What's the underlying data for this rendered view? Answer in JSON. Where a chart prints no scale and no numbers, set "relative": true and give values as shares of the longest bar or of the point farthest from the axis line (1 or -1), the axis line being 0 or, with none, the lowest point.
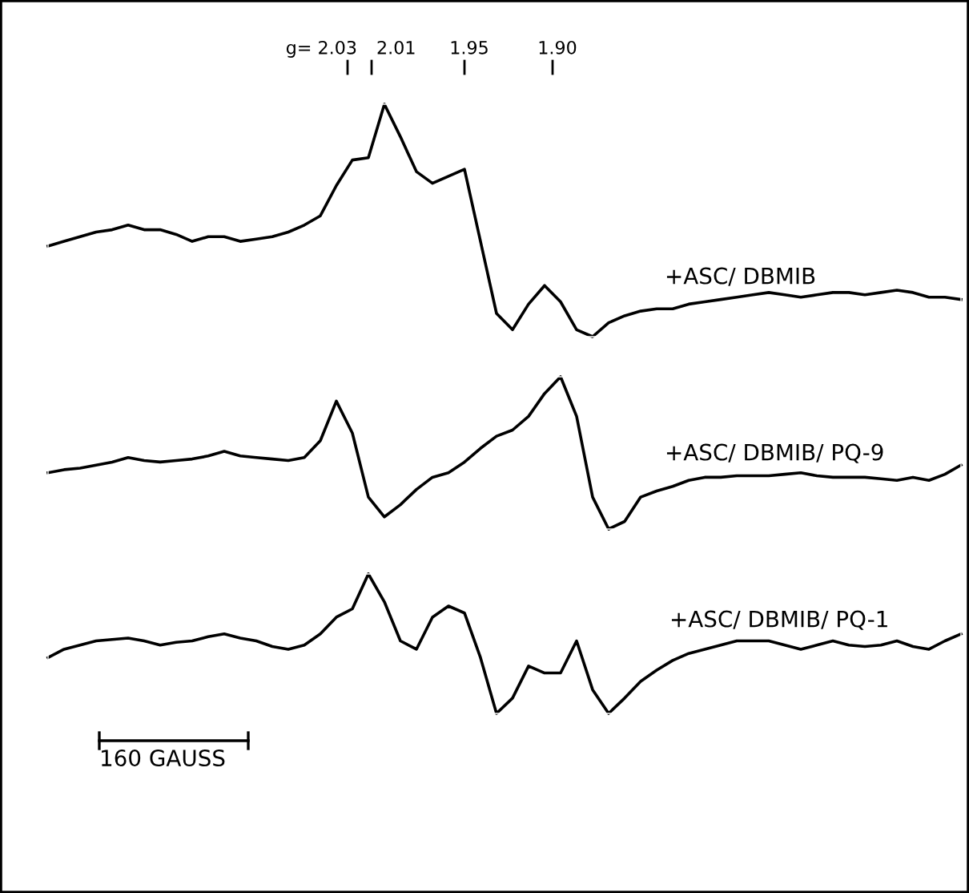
{
  "chart_data": [
    {
      "type": "line",
      "relative": true,
      "categories": [
        null,
        null,
        null,
        null,
        null,
        null,
        null,
        null,
        null,
        null,
        null,
        null,
        null,
        null,
        null,
        null,
        null,
        null,
        null,
        null,
        null,
        null,
        null,
        null,
        null,
        null,
        null,
        null,
        null,
        null,
        null,
        null,
        null,
        null,
        null,
        null,
        null,
        null,
        null,
        null,
        null,
        null,
        null,
        null,
        null,
        null,
        null,
        null,
        null,
        null,
        null,
        null,
        null,
        null,
        null,
        null,
        null,
        null
      ],
      "annotations": [
        "g= 2.03",
        "2.01",
        "1.95",
        "1.90"
      ],
      "series": [
        {
          "name": "+ASC/ DBMIB",
          "color": "#000000",
          "values": [
            0.39,
            0.41,
            0.43,
            0.45,
            0.46,
            0.48,
            0.46,
            0.46,
            0.44,
            0.41,
            0.43,
            0.43,
            0.41,
            0.42,
            0.43,
            0.45,
            0.48,
            0.52,
            0.65,
            0.76,
            0.77,
            1,
            0.86,
            0.71,
            0.66,
            0.69,
            0.72,
            0.41,
            0.1,
            0.03,
            0.14,
            0.22,
            0.15,
            0.03,
            0,
            0.06,
            0.09,
            0.11,
            0.12,
            0.12,
            0.14,
            0.15,
            0.16,
            0.17,
            0.18,
            0.19,
            0.18,
            0.17,
            0.18,
            0.19,
            0.19,
            0.18,
            0.19,
            0.2,
            0.19,
            0.17,
            0.17,
            0.16
          ]
        }
      ]
    },
    {
      "type": "line",
      "relative": true,
      "categories": [
        null,
        null,
        null,
        null,
        null,
        null,
        null,
        null,
        null,
        null,
        null,
        null,
        null,
        null,
        null,
        null,
        null,
        null,
        null,
        null,
        null,
        null,
        null,
        null,
        null,
        null,
        null,
        null,
        null,
        null,
        null,
        null,
        null,
        null,
        null,
        null,
        null,
        null,
        null,
        null,
        null,
        null,
        null,
        null,
        null,
        null,
        null,
        null,
        null,
        null,
        null,
        null,
        null,
        null,
        null,
        null,
        null,
        null
      ],
      "series": [
        {
          "name": "+ASC/ DBMIB/ PQ-9",
          "color": "#000000",
          "values": [
            0.37,
            0.39,
            0.4,
            0.42,
            0.44,
            0.47,
            0.45,
            0.44,
            0.45,
            0.46,
            0.48,
            0.51,
            0.48,
            0.47,
            0.46,
            0.45,
            0.47,
            0.58,
            0.84,
            0.63,
            0.21,
            0.08,
            0.16,
            0.26,
            0.34,
            0.37,
            0.44,
            0.53,
            0.61,
            0.65,
            0.74,
            0.89,
            1,
            0.74,
            0.21,
            0,
            0.05,
            0.21,
            0.25,
            0.28,
            0.32,
            0.34,
            0.34,
            0.35,
            0.35,
            0.35,
            0.36,
            0.37,
            0.35,
            0.34,
            0.34,
            0.34,
            0.33,
            0.32,
            0.34,
            0.32,
            0.36,
            0.42
          ]
        }
      ]
    },
    {
      "type": "line",
      "relative": true,
      "categories": [
        null,
        null,
        null,
        null,
        null,
        null,
        null,
        null,
        null,
        null,
        null,
        null,
        null,
        null,
        null,
        null,
        null,
        null,
        null,
        null,
        null,
        null,
        null,
        null,
        null,
        null,
        null,
        null,
        null,
        null,
        null,
        null,
        null,
        null,
        null,
        null,
        null,
        null,
        null,
        null,
        null,
        null,
        null,
        null,
        null,
        null,
        null,
        null,
        null,
        null,
        null,
        null,
        null,
        null,
        null,
        null,
        null,
        null
      ],
      "annotations": [
        "160 GAUSS"
      ],
      "series": [
        {
          "name": "+ASC/ DBMIB/ PQ-1",
          "color": "#000000",
          "values": [
            0.4,
            0.46,
            0.49,
            0.52,
            0.53,
            0.54,
            0.52,
            0.49,
            0.51,
            0.52,
            0.55,
            0.57,
            0.54,
            0.52,
            0.48,
            0.46,
            0.49,
            0.57,
            0.69,
            0.75,
            1,
            0.8,
            0.52,
            0.46,
            0.69,
            0.77,
            0.72,
            0.4,
            0,
            0.11,
            0.34,
            0.29,
            0.29,
            0.52,
            0.17,
            0,
            0.11,
            0.23,
            0.31,
            0.38,
            0.43,
            0.46,
            0.49,
            0.52,
            0.52,
            0.52,
            0.49,
            0.46,
            0.49,
            0.52,
            0.49,
            0.48,
            0.49,
            0.52,
            0.48,
            0.46,
            0.52,
            0.57
          ]
        }
      ]
    }
  ]
}
